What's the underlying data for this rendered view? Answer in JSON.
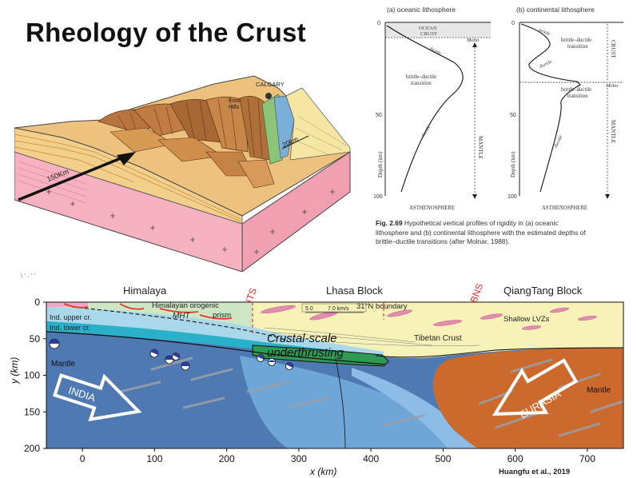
{
  "title": "Rheology of the Crust",
  "block_diagram": {
    "label_calgary": "CALGARY",
    "label_foothills_1": "Foot",
    "label_foothills_2": "Hills",
    "scale_20km": "20km",
    "scale_150km": "150Km"
  },
  "profile_a": {
    "heading": "(a)  oceanic lithosphere",
    "ocean_crust_1": "OCEAN",
    "ocean_crust_2": "CRUST",
    "moho": "Moho",
    "brittle": "brittle",
    "transition_1": "brittle–ductile",
    "transition_2": "transition",
    "ductile": "ductile",
    "mantle": "MANTLE",
    "asthenosphere": "ASTHENOSPHERE",
    "ytick_0": "0",
    "ytick_50": "50",
    "ytick_100": "100",
    "ylabel": "Depth (km)"
  },
  "profile_b": {
    "heading": "(b)  continental lithosphere",
    "brittle": "brittle",
    "transition_1": "brittle–ductile",
    "transition_2": "transition",
    "ductile": "ductile",
    "crust": "CRUST",
    "moho": "Moho",
    "transition2_1": "brittle–ductile",
    "transition2_2": "transition",
    "ductile2": "ductile",
    "mantle": "MANTLE",
    "asthenosphere": "ASTHENOSPHERE",
    "ytick_0": "0",
    "ytick_50": "50",
    "ytick_100": "100",
    "ylabel": "Depth (km)"
  },
  "caption": {
    "fig": "Fig. 2.69",
    "line1": "Hypothetical vertical profiles of rigidity in (a) oceanic",
    "line2": "lithosphere and (b) continental lithosphere with the estimated depths of",
    "line3": "brittle–ductile transitions (after Molnar, 1988)."
  },
  "cross_section": {
    "region_himalaya": "Himalaya",
    "region_lhasa": "Lhasa Block",
    "region_qiangtang": "QiangTang Block",
    "suture_its": "ITS",
    "suture_bns": "BNS",
    "label_orogenic_1": "Himalayan orogenic",
    "label_orogenic_2": "prism",
    "label_mht": "MHT",
    "label_upper_cr": "Ind. upper cr.",
    "label_lower_cr": "Ind. lower cr.",
    "label_mantle_left": "Mantle",
    "label_underthrust_1": "Crustal-scale",
    "label_underthrust_2": "underthrusting",
    "label_tibetan": "Tibetan Crust",
    "label_lvz": "Shallow LVZs",
    "label_boundary": "31°N  boundary",
    "scale_1": "5.0",
    "scale_2": "7.0 km/s",
    "arrow_india": "INDIA",
    "arrow_eurasia": "EURASIA",
    "label_mantle_right": "Mantle",
    "ylabel": "y (km)",
    "xlabel": "x (km)",
    "yticks": [
      "0",
      "50",
      "100",
      "150",
      "200"
    ],
    "xticks": [
      "0",
      "100",
      "200",
      "300",
      "400",
      "500",
      "600",
      "700"
    ],
    "credit": "Huangfu et al., 2019",
    "faint_label": "\\  ′    -      ′      ′"
  },
  "colors": {
    "pink_basement": "#f4a6b6",
    "tan_strata": "#e8c07a",
    "brown_thrust": "#b5733c",
    "mantle_blue": "#4a73ad",
    "light_blue": "#7fb0dc",
    "cyan_layer": "#2ab0c8",
    "tibetan_yellow": "#f6f2b0",
    "eurasia_orange": "#cf6a2c",
    "underthrust_green": "#2f9a55",
    "suture_red": "#e03030"
  }
}
